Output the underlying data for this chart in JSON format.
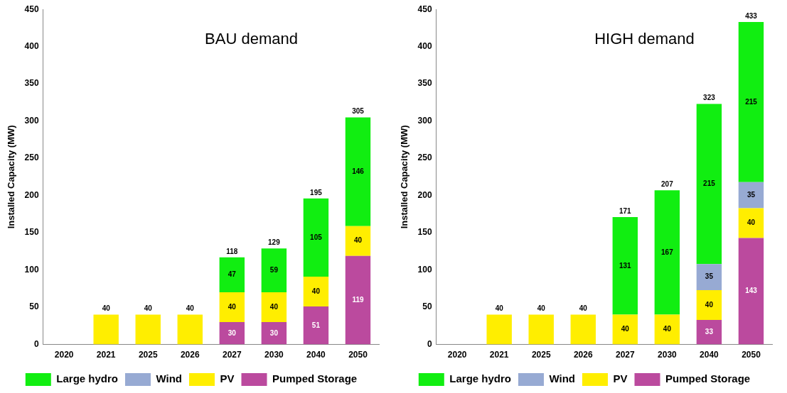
{
  "chart_data": [
    {
      "type": "bar",
      "title": "BAU demand",
      "ylabel": "Installed Capacity (MW)",
      "stacked": true,
      "legend": "bottom",
      "grid": false,
      "categories": [
        "2020",
        "2021",
        "2025",
        "2026",
        "2027",
        "2030",
        "2040",
        "2050"
      ],
      "ylim": [
        0,
        450
      ],
      "yticks": [
        0,
        50,
        100,
        150,
        200,
        250,
        300,
        350,
        400,
        450
      ],
      "series": [
        {
          "name": "Pumped Storage",
          "color": "#bb4a9e",
          "values": [
            null,
            null,
            null,
            null,
            30,
            30,
            51,
            119
          ],
          "value_labels": [
            null,
            null,
            null,
            null,
            "30",
            "30",
            "51",
            "119"
          ]
        },
        {
          "name": "PV",
          "color": "#ffee00",
          "values": [
            null,
            40,
            40,
            40,
            40,
            40,
            40,
            40
          ],
          "value_labels": [
            null,
            null,
            null,
            null,
            "40",
            "40",
            "40",
            "40"
          ]
        },
        {
          "name": "Wind",
          "color": "#97aad3",
          "values": [
            null,
            null,
            null,
            null,
            null,
            null,
            null,
            null
          ]
        },
        {
          "name": "Large hydro",
          "color": "#11ee11",
          "values": [
            null,
            null,
            null,
            null,
            47,
            59,
            105,
            146
          ],
          "value_labels": [
            null,
            null,
            null,
            null,
            "47",
            "59",
            "105",
            "146"
          ]
        }
      ],
      "totals": [
        null,
        "40",
        "40",
        "40",
        "118",
        "129",
        "195",
        "305"
      ]
    },
    {
      "type": "bar",
      "title": "HIGH demand",
      "ylabel": "Installed Capacity (MW)",
      "stacked": true,
      "legend": "bottom",
      "grid": false,
      "categories": [
        "2020",
        "2021",
        "2025",
        "2026",
        "2027",
        "2030",
        "2040",
        "2050"
      ],
      "ylim": [
        0,
        450
      ],
      "yticks": [
        0,
        50,
        100,
        150,
        200,
        250,
        300,
        350,
        400,
        450
      ],
      "series": [
        {
          "name": "Pumped Storage",
          "color": "#bb4a9e",
          "values": [
            null,
            null,
            null,
            null,
            null,
            null,
            33,
            143
          ],
          "value_labels": [
            null,
            null,
            null,
            null,
            null,
            null,
            "33",
            "143"
          ]
        },
        {
          "name": "PV",
          "color": "#ffee00",
          "values": [
            null,
            40,
            40,
            40,
            40,
            40,
            40,
            40
          ],
          "value_labels": [
            null,
            null,
            null,
            null,
            "40",
            "40",
            "40",
            "40"
          ]
        },
        {
          "name": "Wind",
          "color": "#97aad3",
          "values": [
            null,
            null,
            null,
            null,
            null,
            null,
            35,
            35
          ],
          "value_labels": [
            null,
            null,
            null,
            null,
            null,
            null,
            "35",
            "35"
          ]
        },
        {
          "name": "Large hydro",
          "color": "#11ee11",
          "values": [
            null,
            null,
            null,
            null,
            131,
            167,
            215,
            215
          ],
          "value_labels": [
            null,
            null,
            null,
            null,
            "131",
            "167",
            "215",
            "215"
          ]
        }
      ],
      "totals": [
        null,
        "40",
        "40",
        "40",
        "171",
        "207",
        "323",
        "433"
      ]
    }
  ]
}
